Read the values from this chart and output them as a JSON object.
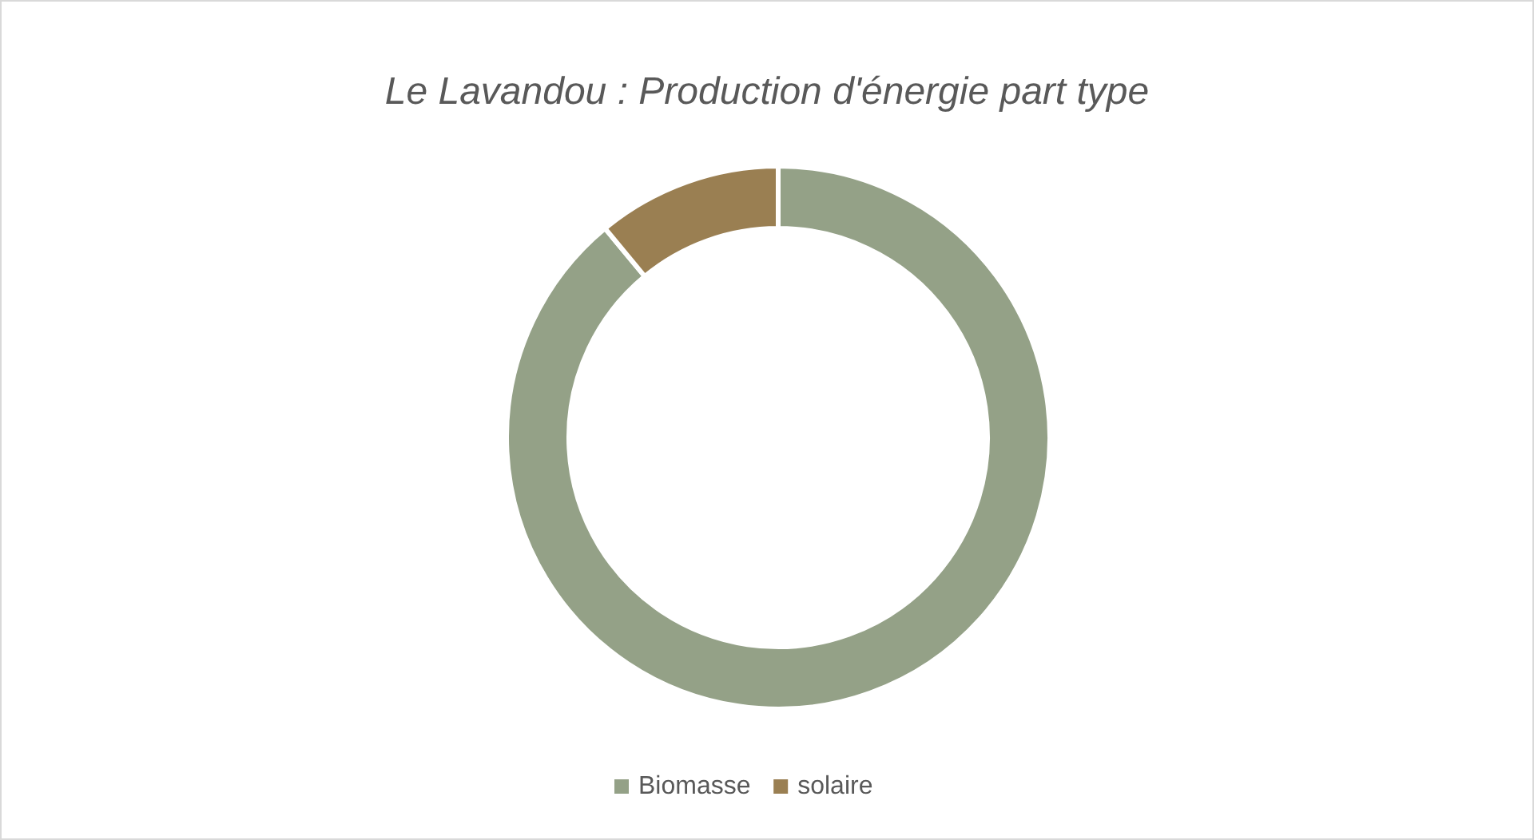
{
  "chart_data": {
    "type": "donut",
    "title": "Le Lavandou : Production d'énergie part type",
    "categories": [
      "Biomasse",
      "solaire"
    ],
    "values": [
      89,
      11
    ],
    "colors": [
      "#94a187",
      "#9a7f52"
    ],
    "legend": "bottom"
  }
}
